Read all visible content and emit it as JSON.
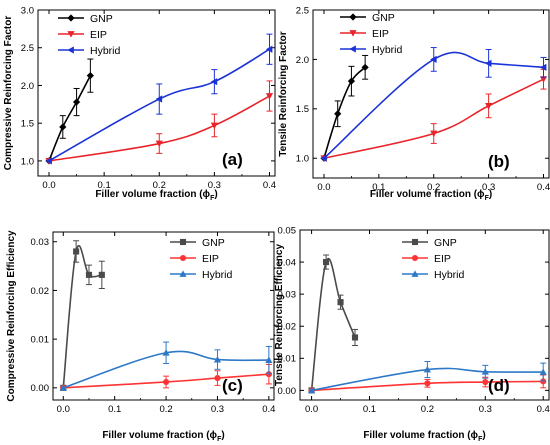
{
  "colors": {
    "top_gnp": "#000000",
    "top_eip": "#e8242a",
    "top_hybrid": "#1b33d6",
    "bottom_gnp": "#4a4a4a",
    "bottom_eip": "#ff3333",
    "bottom_hybrid": "#2e78c8"
  },
  "chart_data": [
    {
      "type": "line",
      "panel_label": "(a)",
      "xlabel": "Filler volume fraction (ϕF)",
      "ylabel": "Compressive Reinforcing Factor",
      "xlim": [
        -0.02,
        0.41
      ],
      "ylim": [
        0.8,
        3.0
      ],
      "xticks": [
        "0.0",
        "0.1",
        "0.2",
        "0.3",
        "0.4"
      ],
      "yticks": [
        "1.0",
        "1.5",
        "2.0",
        "2.5",
        "3.0"
      ],
      "legend": "top-left",
      "series": [
        {
          "name": "GNP",
          "style": "top_gnp",
          "marker": "diamond",
          "x": [
            0,
            0.025,
            0.05,
            0.075
          ],
          "y": [
            1.0,
            1.45,
            1.78,
            2.13
          ],
          "err": [
            0,
            0.15,
            0.18,
            0.22
          ]
        },
        {
          "name": "EIP",
          "style": "top_eip",
          "marker": "tri-down",
          "x": [
            0,
            0.2,
            0.3,
            0.4
          ],
          "y": [
            1.0,
            1.23,
            1.47,
            1.86
          ],
          "err": [
            0,
            0.13,
            0.15,
            0.2
          ]
        },
        {
          "name": "Hybrid",
          "style": "top_hybrid",
          "marker": "tri-left",
          "x": [
            0,
            0.2,
            0.3,
            0.4
          ],
          "y": [
            1.0,
            1.82,
            2.05,
            2.48
          ],
          "err": [
            0,
            0.2,
            0.16,
            0.2
          ]
        }
      ]
    },
    {
      "type": "line",
      "panel_label": "(b)",
      "xlabel": "Filler volume fraction (ϕF)",
      "ylabel": "Tensile Reinforcing Factor",
      "xlim": [
        -0.02,
        0.41
      ],
      "ylim": [
        0.8,
        2.5
      ],
      "xticks": [
        "0.0",
        "0.1",
        "0.2",
        "0.3",
        "0.4"
      ],
      "yticks": [
        "1.0",
        "1.5",
        "2.0",
        "2.5"
      ],
      "legend": "top-left",
      "series": [
        {
          "name": "GNP",
          "style": "top_gnp",
          "marker": "diamond",
          "x": [
            0,
            0.025,
            0.05,
            0.075
          ],
          "y": [
            1.0,
            1.45,
            1.78,
            1.92
          ],
          "err": [
            0,
            0.13,
            0.15,
            0.12
          ]
        },
        {
          "name": "EIP",
          "style": "top_eip",
          "marker": "tri-down",
          "x": [
            0,
            0.2,
            0.3,
            0.4
          ],
          "y": [
            1.0,
            1.25,
            1.53,
            1.8
          ],
          "err": [
            0,
            0.1,
            0.12,
            0.1
          ]
        },
        {
          "name": "Hybrid",
          "style": "top_hybrid",
          "marker": "tri-left",
          "x": [
            0,
            0.2,
            0.3,
            0.4
          ],
          "y": [
            1.0,
            2.0,
            1.96,
            1.92
          ],
          "err": [
            0,
            0.12,
            0.14,
            0.1
          ]
        }
      ]
    },
    {
      "type": "line",
      "panel_label": "(c)",
      "xlabel": "Filler volume fraction (ϕF)",
      "ylabel": "Compressive Reinforcing Efficiency",
      "xlim": [
        -0.02,
        0.41
      ],
      "ylim": [
        -0.0025,
        0.032
      ],
      "xticks": [
        "0.0",
        "0.1",
        "0.2",
        "0.3",
        "0.4"
      ],
      "yticks": [
        "0.00",
        "0.01",
        "0.02",
        "0.03"
      ],
      "legend": "top-right",
      "series": [
        {
          "name": "GNP",
          "style": "bottom_gnp",
          "marker": "square",
          "x": [
            0,
            0.025,
            0.05,
            0.075
          ],
          "y": [
            0,
            0.028,
            0.0232,
            0.0232
          ],
          "err": [
            0,
            0.0022,
            0.002,
            0.0028
          ]
        },
        {
          "name": "EIP",
          "style": "bottom_eip",
          "marker": "circle",
          "x": [
            0,
            0.2,
            0.3,
            0.4
          ],
          "y": [
            0,
            0.0012,
            0.002,
            0.0028
          ],
          "err": [
            0,
            0.0012,
            0.0015,
            0.002
          ]
        },
        {
          "name": "Hybrid",
          "style": "bottom_hybrid",
          "marker": "tri-up",
          "x": [
            0,
            0.2,
            0.3,
            0.4
          ],
          "y": [
            0,
            0.0072,
            0.0058,
            0.0057
          ],
          "err": [
            0,
            0.0022,
            0.002,
            0.0028
          ]
        }
      ]
    },
    {
      "type": "line",
      "panel_label": "(d)",
      "xlabel": "Filler volume fraction (ϕF)",
      "ylabel": "Tensile Reinforcing Efficiency",
      "xlim": [
        -0.02,
        0.41
      ],
      "ylim": [
        -0.003,
        0.05
      ],
      "xticks": [
        "0.0",
        "0.1",
        "0.2",
        "0.3",
        "0.4"
      ],
      "yticks": [
        "0.00",
        "0.01",
        "0.02",
        "0.03",
        "0.04",
        "0.05"
      ],
      "legend": "top-right",
      "series": [
        {
          "name": "GNP",
          "style": "bottom_gnp",
          "marker": "square",
          "x": [
            0,
            0.025,
            0.05,
            0.075
          ],
          "y": [
            0,
            0.04,
            0.0275,
            0.0165
          ],
          "err": [
            0,
            0.0022,
            0.0022,
            0.0025
          ]
        },
        {
          "name": "EIP",
          "style": "bottom_eip",
          "marker": "circle",
          "x": [
            0,
            0.2,
            0.3,
            0.4
          ],
          "y": [
            0,
            0.0022,
            0.0026,
            0.0028
          ],
          "err": [
            0,
            0.0012,
            0.0015,
            0.002
          ]
        },
        {
          "name": "Hybrid",
          "style": "bottom_hybrid",
          "marker": "tri-up",
          "x": [
            0,
            0.2,
            0.3,
            0.4
          ],
          "y": [
            0,
            0.0065,
            0.0058,
            0.0057
          ],
          "err": [
            0,
            0.0025,
            0.002,
            0.0028
          ]
        }
      ]
    }
  ]
}
